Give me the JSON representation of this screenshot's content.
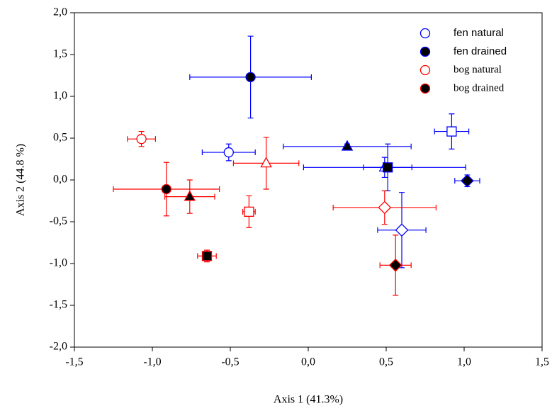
{
  "chart_data": {
    "type": "scatter",
    "x_label": "Axis 1 (41.3%)",
    "y_label": "Axis 2 (44.8 %)",
    "xlim": [
      -1.5,
      1.5
    ],
    "ylim": [
      -2.0,
      2.0
    ],
    "xticks": [
      {
        "value": -1.5,
        "label": "-1,5"
      },
      {
        "value": -1.0,
        "label": "-1,0"
      },
      {
        "value": -0.5,
        "label": "-0,5"
      },
      {
        "value": 0.0,
        "label": "0,0"
      },
      {
        "value": 0.5,
        "label": "0,5"
      },
      {
        "value": 1.0,
        "label": "1,0"
      },
      {
        "value": 1.5,
        "label": "1,5"
      }
    ],
    "yticks": [
      {
        "value": -2.0,
        "label": "-2,0"
      },
      {
        "value": -1.5,
        "label": "-1,5"
      },
      {
        "value": -1.0,
        "label": "-1,0"
      },
      {
        "value": -0.5,
        "label": "-0,5"
      },
      {
        "value": 0.0,
        "label": "0,0"
      },
      {
        "value": 0.5,
        "label": "0,5"
      },
      {
        "value": 1.0,
        "label": "1,0"
      },
      {
        "value": 1.5,
        "label": "1,5"
      },
      {
        "value": 2.0,
        "label": "2,0"
      }
    ],
    "grid": false,
    "legend": "top-right",
    "markers": [
      "circle",
      "triangle",
      "square",
      "diamond"
    ],
    "series": [
      {
        "name": "fen natural",
        "color": "#0000ff",
        "marker_fill": "#ffffff",
        "x": [
          -0.51,
          0.49,
          0.92,
          0.6
        ],
        "values": [
          0.33,
          0.15,
          0.58,
          -0.6
        ],
        "xerr": [
          0.17,
          0.52,
          0.11,
          0.155
        ],
        "yerr": [
          0.1,
          0.12,
          0.21,
          0.45
        ]
      },
      {
        "name": "fen drained",
        "color": "#0000ff",
        "marker_fill": "#000000",
        "x": [
          -0.37,
          0.25,
          0.51,
          1.02
        ],
        "values": [
          1.23,
          0.4,
          0.15,
          -0.01
        ],
        "xerr": [
          0.39,
          0.41,
          0.155,
          0.08
        ],
        "yerr": [
          0.49,
          0.03,
          0.28,
          0.07
        ]
      },
      {
        "name": "bog natural",
        "color": "#ff0000",
        "marker_fill": "#ffffff",
        "x": [
          -1.07,
          -0.27,
          -0.38,
          0.49
        ],
        "values": [
          0.49,
          0.2,
          -0.38,
          -0.33
        ],
        "xerr": [
          0.09,
          0.21,
          0.04,
          0.33
        ],
        "yerr": [
          0.09,
          0.31,
          0.19,
          0.2
        ]
      },
      {
        "name": "bog drained",
        "color": "#ff0000",
        "marker_fill": "#000000",
        "x": [
          -0.91,
          -0.76,
          -0.65,
          0.56
        ],
        "values": [
          -0.11,
          -0.2,
          -0.91,
          -1.02
        ],
        "xerr": [
          0.34,
          0.16,
          0.06,
          0.1
        ],
        "yerr": [
          0.32,
          0.2,
          0.07,
          0.36
        ]
      }
    ]
  }
}
